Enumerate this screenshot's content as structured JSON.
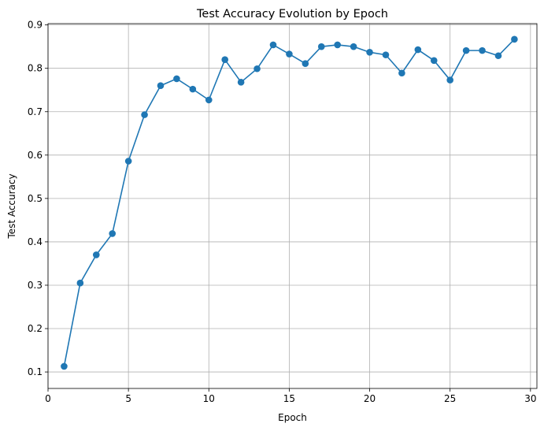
{
  "chart_data": {
    "type": "line",
    "title": "Test Accuracy Evolution by Epoch",
    "xlabel": "Epoch",
    "ylabel": "Test Accuracy",
    "xlim": [
      0,
      30.4
    ],
    "ylim": [
      0.062,
      0.903
    ],
    "x_ticks": [
      0,
      5,
      10,
      15,
      20,
      25,
      30
    ],
    "y_ticks": [
      0.1,
      0.2,
      0.3,
      0.4,
      0.5,
      0.6,
      0.7,
      0.8,
      0.9
    ],
    "grid": true,
    "color": "#1f77b4",
    "marker": "circle",
    "series": [
      {
        "x": [
          1,
          2,
          3,
          4,
          5,
          6,
          7,
          8,
          9,
          10,
          11,
          12,
          13,
          14,
          15,
          16,
          17,
          18,
          19,
          20,
          21,
          22,
          23,
          24,
          25,
          26,
          27,
          28,
          29
        ],
        "values": [
          0.113,
          0.305,
          0.37,
          0.419,
          0.586,
          0.693,
          0.76,
          0.776,
          0.752,
          0.727,
          0.82,
          0.768,
          0.799,
          0.854,
          0.833,
          0.811,
          0.85,
          0.854,
          0.85,
          0.837,
          0.831,
          0.789,
          0.843,
          0.818,
          0.773,
          0.841,
          0.841,
          0.829,
          0.867
        ]
      }
    ]
  }
}
